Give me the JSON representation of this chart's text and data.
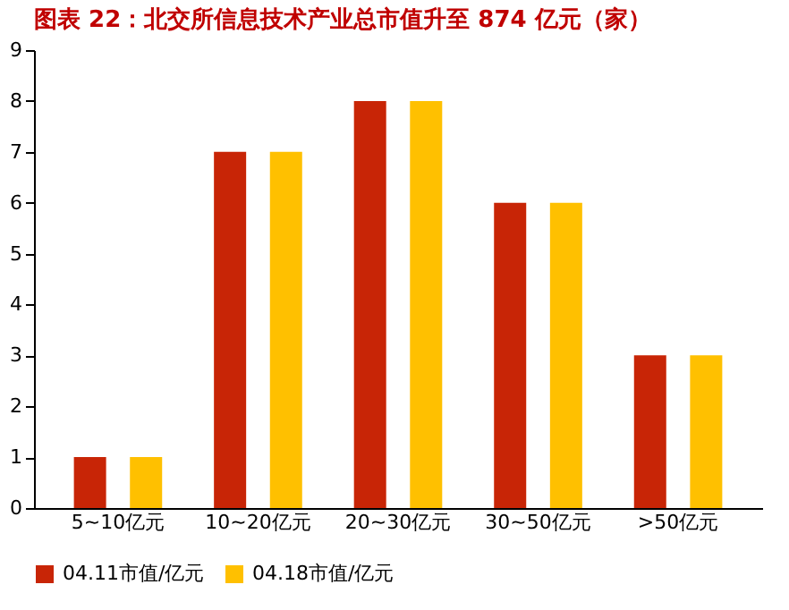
{
  "chart_data": {
    "type": "bar",
    "title": "图表 22：北交所信息技术产业总市值升至 874 亿元（家）",
    "categories": [
      "5~10亿元",
      "10~20亿元",
      "20~30亿元",
      "30~50亿元",
      ">50亿元"
    ],
    "series": [
      {
        "name": "04.11市值/亿元",
        "color": "#c82506",
        "values": [
          1,
          7,
          8,
          6,
          3
        ]
      },
      {
        "name": "04.18市值/亿元",
        "color": "#ffc000",
        "values": [
          1,
          7,
          8,
          6,
          3
        ]
      }
    ],
    "ylim": [
      0,
      9
    ],
    "yticks": [
      0,
      1,
      2,
      3,
      4,
      5,
      6,
      7,
      8,
      9
    ],
    "grid": false,
    "legend": "bottom"
  }
}
